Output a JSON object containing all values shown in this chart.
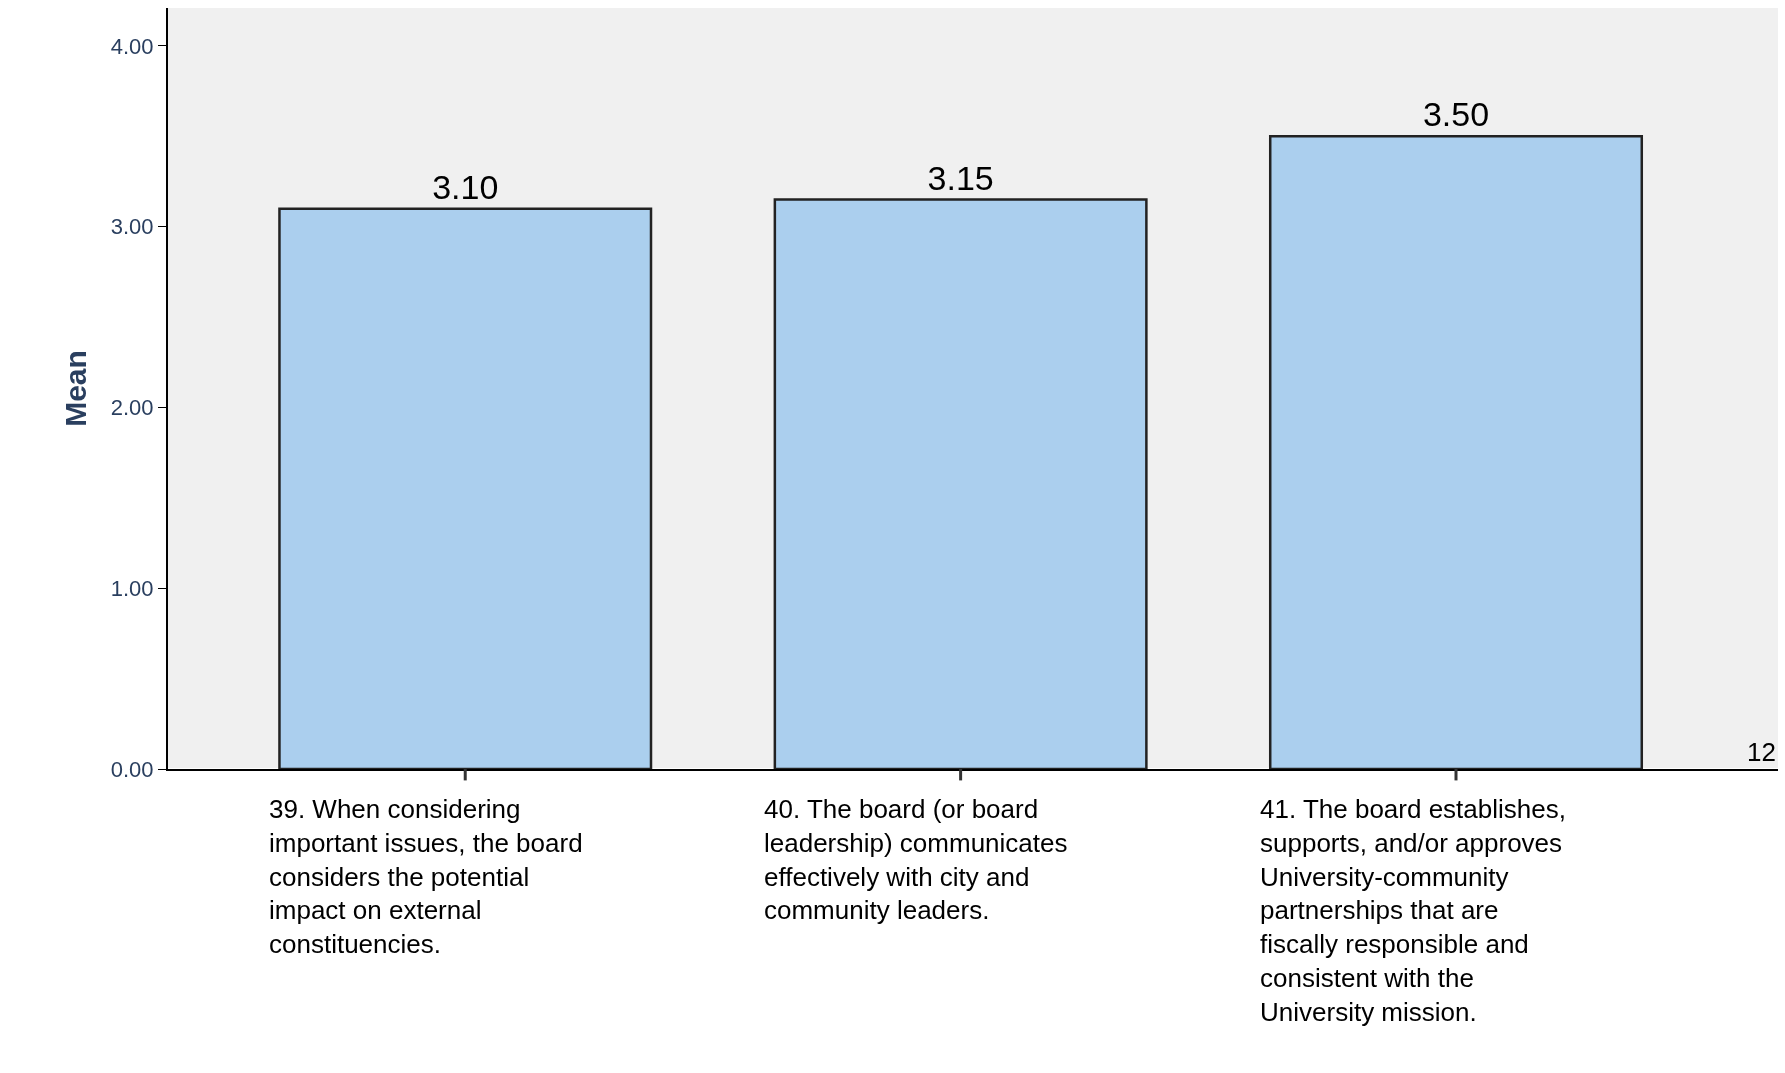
{
  "chart_data": {
    "type": "bar",
    "ylabel": "Mean",
    "categories": [
      "39. When considering important issues, the board considers the potential impact on external constituencies.",
      "40. The board (or board leadership) communicates effectively with city and community leaders.",
      "41. The board establishes, supports, and/or approves University-community partnerships that are fiscally responsible and consistent with the University mission."
    ],
    "values": [
      3.1,
      3.15,
      3.5
    ],
    "value_labels": [
      "3.10",
      "3.15",
      "3.50"
    ],
    "color": "#abcfee",
    "ylim": [
      0,
      4.21
    ],
    "yticks": [
      {
        "value": 0,
        "label": "0.00"
      },
      {
        "value": 1,
        "label": "1.00"
      },
      {
        "value": 2,
        "label": "2.00"
      },
      {
        "value": 3,
        "label": "3.00"
      },
      {
        "value": 4,
        "label": "4.00"
      }
    ],
    "grid": false,
    "annotations": [
      "12"
    ]
  }
}
